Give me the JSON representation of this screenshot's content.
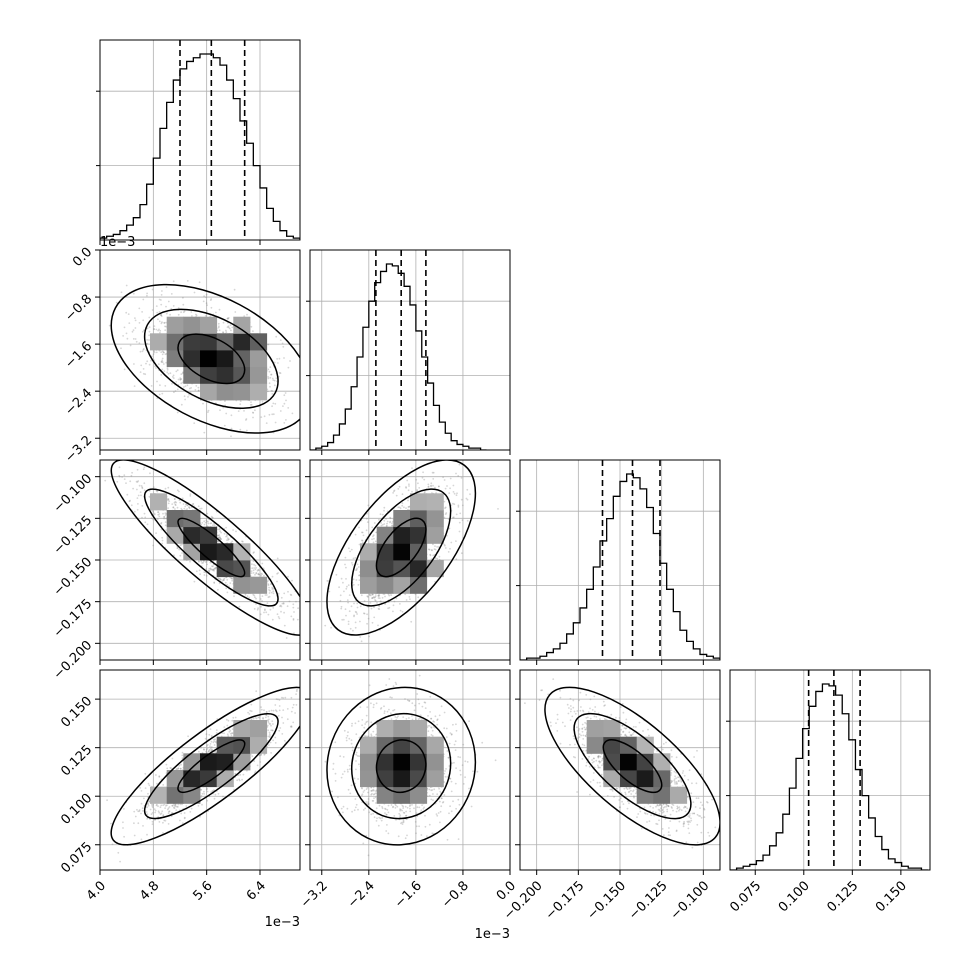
{
  "chart_data": {
    "type": "corner",
    "n_params": 4,
    "labels": [
      "",
      "",
      "",
      ""
    ],
    "axes": [
      {
        "range": [
          0.004,
          0.007
        ],
        "ticks": [
          0.004,
          0.0048,
          0.0056,
          0.0064
        ],
        "tick_labels": [
          "4.0",
          "4.8",
          "5.6",
          "6.4"
        ],
        "offset_label": "1e−3"
      },
      {
        "range": [
          -0.0034,
          0.0
        ],
        "ticks": [
          -0.0032,
          -0.0024,
          -0.0016,
          -0.0008,
          0.0
        ],
        "tick_labels": [
          "−3.2",
          "−2.4",
          "−1.6",
          "−0.8",
          "0.0"
        ],
        "offset_label": "1e−3"
      },
      {
        "range": [
          -0.21,
          -0.09
        ],
        "ticks": [
          -0.2,
          -0.175,
          -0.15,
          -0.125,
          -0.1
        ],
        "tick_labels": [
          "−0.200",
          "−0.175",
          "−0.150",
          "−0.125",
          "−0.100"
        ],
        "offset_label": ""
      },
      {
        "range": [
          0.062,
          0.165
        ],
        "ticks": [
          0.075,
          0.1,
          0.125,
          0.15
        ],
        "tick_labels": [
          "0.075",
          "0.100",
          "0.125",
          "0.150"
        ],
        "offset_label": ""
      }
    ],
    "quantiles": [
      [
        0.0052,
        0.00567,
        0.00617
      ],
      [
        -0.00228,
        -0.00185,
        -0.00143
      ],
      [
        -0.1605,
        -0.1425,
        -0.126
      ],
      [
        0.1025,
        0.1155,
        0.129
      ]
    ],
    "histograms": [
      {
        "bin_centers": [
          0.00405,
          0.00415,
          0.00425,
          0.00435,
          0.00445,
          0.00455,
          0.00465,
          0.00475,
          0.00485,
          0.00495,
          0.00505,
          0.00515,
          0.00525,
          0.00535,
          0.00545,
          0.00555,
          0.00565,
          0.00575,
          0.00585,
          0.00595,
          0.00605,
          0.00615,
          0.00625,
          0.00635,
          0.00645,
          0.00655,
          0.00665,
          0.00675,
          0.00685,
          0.00695
        ],
        "counts": [
          1,
          2,
          3,
          5,
          8,
          12,
          19,
          30,
          44,
          60,
          74,
          86,
          92,
          96,
          98,
          100,
          100,
          98,
          94,
          86,
          76,
          64,
          52,
          40,
          28,
          17,
          10,
          5,
          2,
          1
        ]
      },
      {
        "bin_centers": [
          -0.00335,
          -0.00325,
          -0.00315,
          -0.00305,
          -0.00295,
          -0.00285,
          -0.00275,
          -0.00265,
          -0.00255,
          -0.00245,
          -0.00235,
          -0.00225,
          -0.00215,
          -0.00205,
          -0.00195,
          -0.00185,
          -0.00175,
          -0.00165,
          -0.00155,
          -0.00145,
          -0.00135,
          -0.00125,
          -0.00115,
          -0.00105,
          -0.00095,
          -0.00085,
          -0.00075,
          -0.00065,
          -0.00055,
          -0.00045
        ],
        "counts": [
          0,
          1,
          2,
          4,
          8,
          14,
          22,
          34,
          50,
          66,
          80,
          90,
          96,
          100,
          99,
          95,
          88,
          78,
          64,
          50,
          36,
          24,
          15,
          9,
          5,
          3,
          2,
          1,
          1,
          0
        ]
      },
      {
        "bin_centers": [
          -0.208,
          -0.204,
          -0.2,
          -0.196,
          -0.192,
          -0.188,
          -0.184,
          -0.18,
          -0.176,
          -0.172,
          -0.168,
          -0.164,
          -0.16,
          -0.156,
          -0.152,
          -0.148,
          -0.144,
          -0.14,
          -0.136,
          -0.132,
          -0.128,
          -0.124,
          -0.12,
          -0.116,
          -0.112,
          -0.108,
          -0.104,
          -0.1,
          -0.096,
          -0.092
        ],
        "counts": [
          0,
          1,
          1,
          2,
          4,
          6,
          9,
          14,
          20,
          28,
          38,
          50,
          64,
          76,
          88,
          96,
          100,
          98,
          92,
          82,
          68,
          52,
          38,
          26,
          16,
          10,
          6,
          3,
          2,
          1
        ]
      },
      {
        "bin_centers": [
          0.0637,
          0.0671,
          0.0705,
          0.0739,
          0.0773,
          0.0807,
          0.0841,
          0.0875,
          0.0909,
          0.0943,
          0.0977,
          0.1011,
          0.1045,
          0.1079,
          0.1113,
          0.1147,
          0.1181,
          0.1215,
          0.1249,
          0.1283,
          0.1317,
          0.1351,
          0.1385,
          0.1419,
          0.1453,
          0.1487,
          0.1521,
          0.1555,
          0.1589,
          0.1623
        ],
        "counts": [
          0,
          1,
          2,
          3,
          5,
          8,
          13,
          20,
          30,
          44,
          60,
          76,
          88,
          96,
          100,
          99,
          94,
          84,
          70,
          54,
          40,
          28,
          18,
          11,
          6,
          4,
          2,
          1,
          1,
          0
        ]
      }
    ],
    "pairs": [
      {
        "x": 0,
        "y": 1,
        "mean": [
          0.00567,
          -0.00185
        ],
        "sd": [
          0.0005,
          0.00042
        ],
        "corr": -0.45,
        "secondary_mode": [
          0.00615,
          -0.0016
        ]
      },
      {
        "x": 0,
        "y": 2,
        "mean": [
          0.00567,
          -0.1425
        ],
        "sd": [
          0.0005,
          0.0175
        ],
        "corr": -0.88
      },
      {
        "x": 1,
        "y": 2,
        "mean": [
          -0.00185,
          -0.1425
        ],
        "sd": [
          0.00042,
          0.0175
        ],
        "corr": 0.62,
        "secondary_mode": [
          -0.0016,
          -0.156
        ]
      },
      {
        "x": 0,
        "y": 3,
        "mean": [
          0.00567,
          0.1155
        ],
        "sd": [
          0.0005,
          0.0135
        ],
        "corr": 0.85
      },
      {
        "x": 1,
        "y": 3,
        "mean": [
          -0.00185,
          0.1155
        ],
        "sd": [
          0.00042,
          0.0135
        ],
        "corr": 0.05
      },
      {
        "x": 2,
        "y": 3,
        "mean": [
          -0.1425,
          0.1155
        ],
        "sd": [
          0.0175,
          0.0135
        ],
        "corr": -0.72
      }
    ],
    "contour_levels": [
      0.393,
      0.865,
      0.989
    ],
    "grid": true,
    "colors": {
      "line": "#000000",
      "grid": "#b0b0b0",
      "points": "#8a8a8a"
    }
  }
}
